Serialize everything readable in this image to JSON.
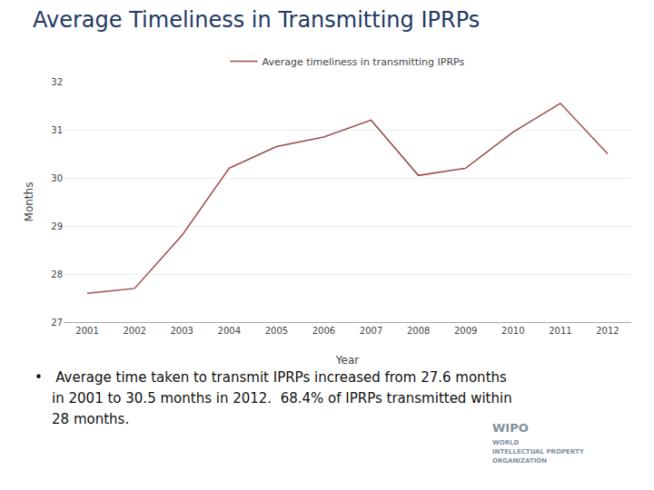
{
  "chart_data": {
    "type": "line",
    "title": "Average Timeliness in Transmitting IPRPs",
    "x": [
      2001,
      2002,
      2003,
      2004,
      2005,
      2006,
      2007,
      2008,
      2009,
      2010,
      2011,
      2012
    ],
    "series": [
      {
        "name": "Average timeliness in transmitting IPRPs",
        "color": "#9b4a4a",
        "values": [
          27.6,
          27.7,
          28.8,
          30.2,
          30.65,
          30.85,
          31.2,
          30.05,
          30.2,
          30.95,
          31.55,
          30.5
        ]
      }
    ],
    "xlabel": "Year",
    "ylabel": "Months",
    "xlim": [
      2000.5,
      2012.5
    ],
    "xticks": [
      2001,
      2002,
      2003,
      2004,
      2005,
      2006,
      2007,
      2008,
      2009,
      2010,
      2011,
      2012
    ],
    "ylim": [
      27,
      32
    ],
    "yticks": [
      27,
      28,
      29,
      30,
      31,
      32
    ],
    "grid": true,
    "legend": "top",
    "annotations": [
      "•   Average time taken to transmit IPRPs increased from 27.6 months",
      "    in 2001 to 30.5 months in 2012.  68.4% of IPRPs transmitted within",
      "    28 months.",
      "WIPO",
      "WORLD",
      "INTELLECTUAL PROPERTY",
      "ORGANIZATION"
    ]
  }
}
